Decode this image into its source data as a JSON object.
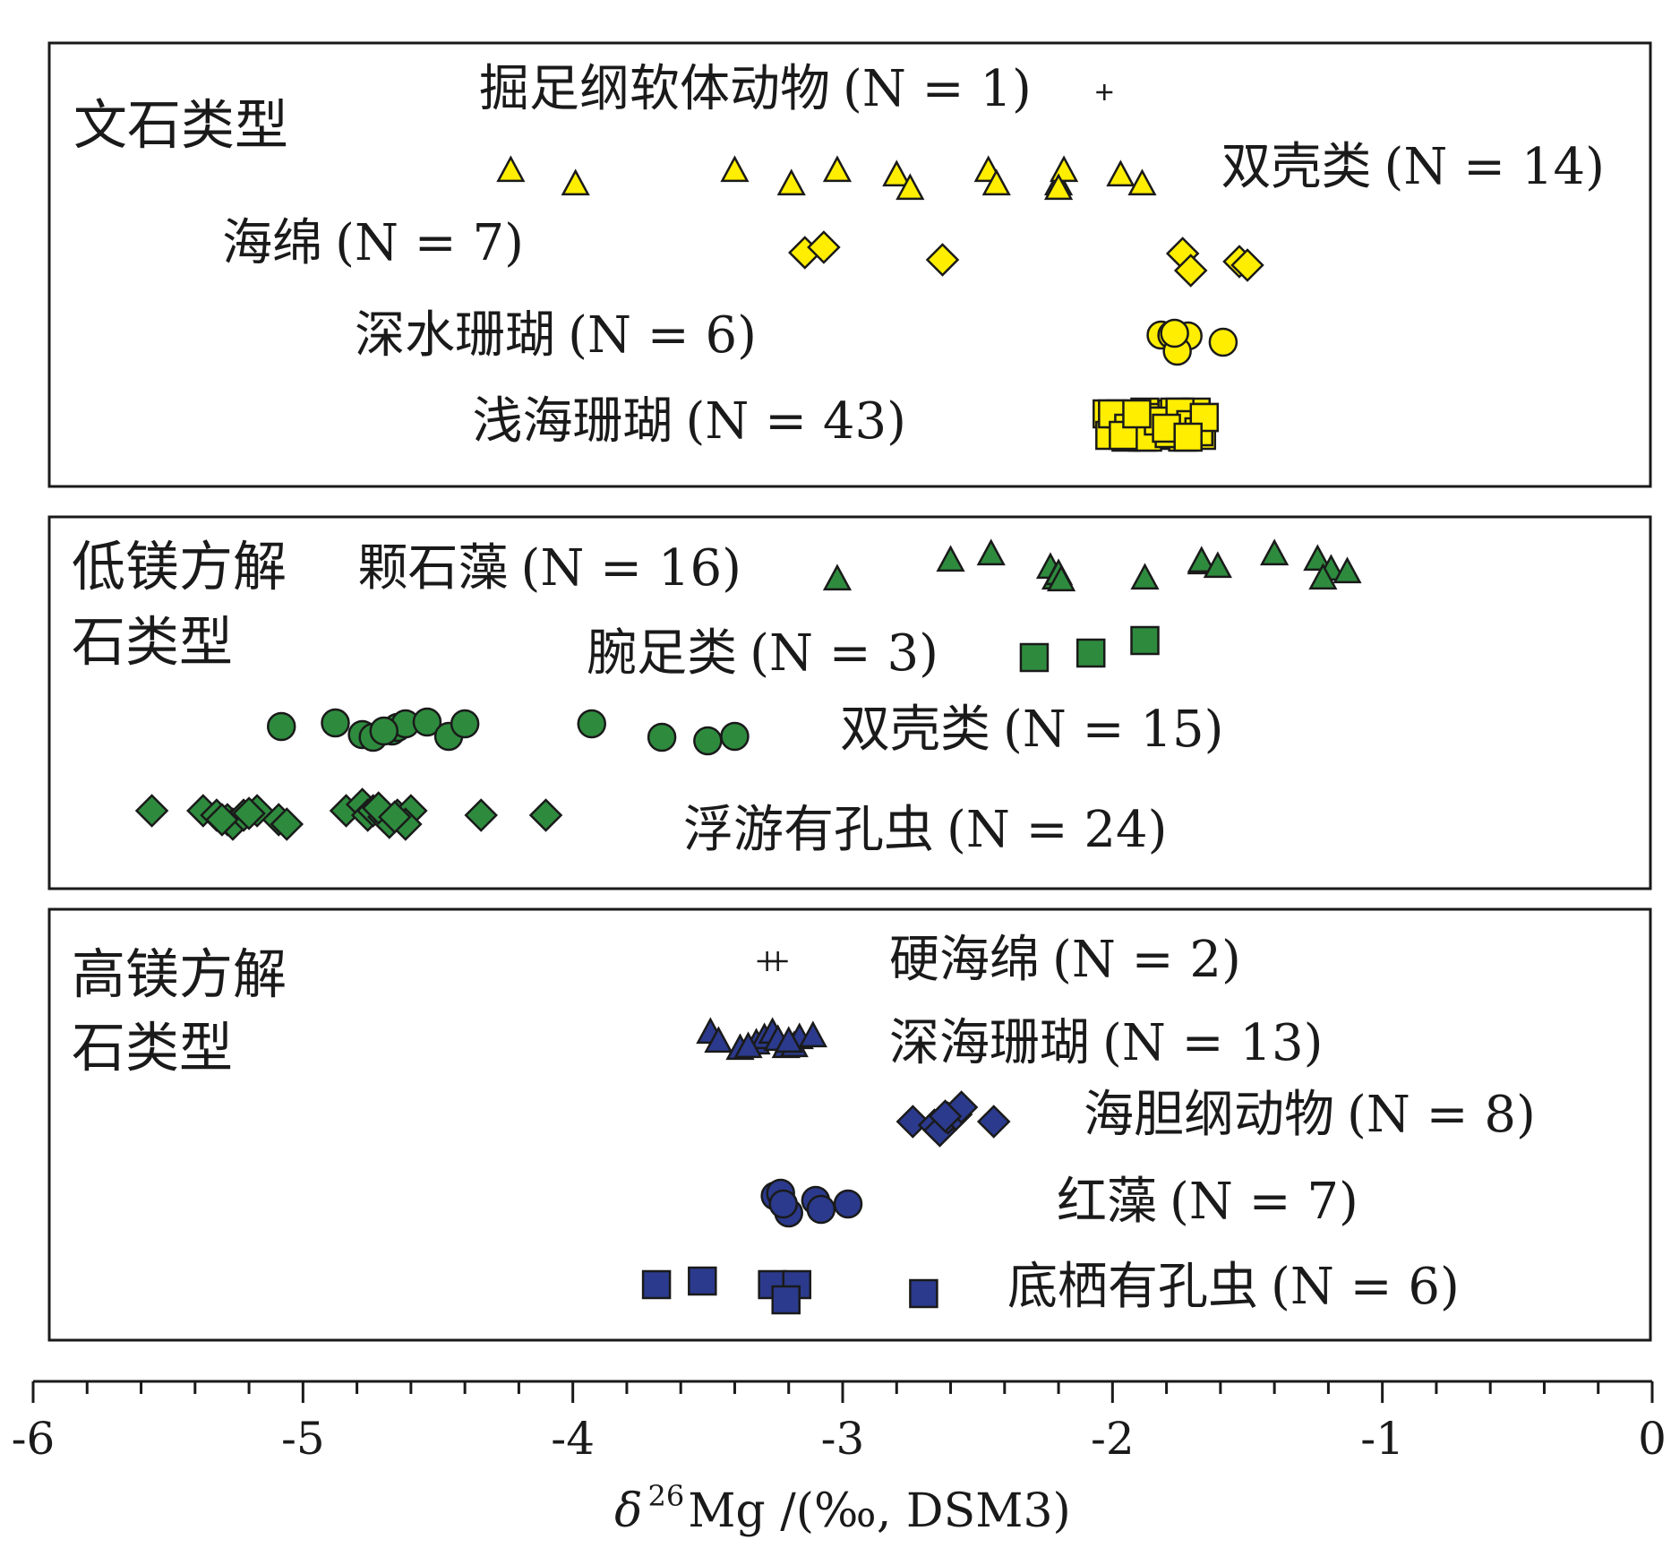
{
  "chart_data": {
    "type": "scatter",
    "xlabel": "δ 26 Mg /(‰, DSM3)",
    "xlabel_parts": {
      "delta": "δ",
      "sup": "26",
      "rest": "Mg /(‰, DSM3)"
    },
    "xlim": [
      -6,
      0
    ],
    "x_ticks": [
      -6,
      -5,
      -4,
      -3,
      -2,
      -1,
      0
    ],
    "x_tick_labels": [
      "-6",
      "-5",
      "-4",
      "-3",
      "-2",
      "-1",
      "0"
    ],
    "minor_tick_step": 0.2,
    "colors": {
      "aragonite": "#ffee00",
      "low_mg_calcite": "#2e8b3e",
      "high_mg_calcite": "#2b3a8c",
      "outline": "#1a1a1a"
    },
    "panels": [
      {
        "key": "aragonite",
        "label_lines": [
          "文石类型"
        ],
        "color": "#ffee00",
        "series": [
          {
            "name": "掘足纲软体动物",
            "n_label": "(N = 1)",
            "marker": "plus",
            "points": [
              -2.03
            ]
          },
          {
            "name": "双壳类",
            "n_label": "(N = 14)",
            "marker": "triangle",
            "points": [
              -4.23,
              -3.99,
              -3.4,
              -3.19,
              -3.02,
              -2.8,
              -2.75,
              -2.46,
              -2.43,
              -2.2,
              -2.18,
              -2.2,
              -1.97,
              -1.89
            ]
          },
          {
            "name": "海绵",
            "n_label": "(N = 7)",
            "marker": "diamond",
            "points": [
              -3.14,
              -3.07,
              -2.63,
              -1.74,
              -1.71,
              -1.53,
              -1.5
            ]
          },
          {
            "name": "深水珊瑚",
            "n_label": "(N = 6)",
            "marker": "circle",
            "points": [
              -1.82,
              -1.78,
              -1.72,
              -1.76,
              -1.59,
              -1.77
            ]
          },
          {
            "name": "浅海珊瑚",
            "n_label": "(N = 43)",
            "marker": "square",
            "points": [
              -2.02,
              -1.98,
              -1.95,
              -1.92,
              -1.9,
              -1.88,
              -1.86,
              -1.84,
              -1.82,
              -1.8,
              -1.78,
              -1.76,
              -1.74,
              -1.72,
              -1.7,
              -1.69,
              -1.68,
              -1.67,
              -1.66,
              -2.01,
              -1.97,
              -1.93,
              -1.89,
              -1.85,
              -1.81,
              -1.77,
              -1.73,
              -1.71,
              -1.69,
              -1.67,
              -2.0,
              -1.94,
              -1.87,
              -1.83,
              -1.79,
              -1.75,
              -1.71,
              -1.68,
              -1.66,
              -1.96,
              -1.91,
              -1.8,
              -1.72
            ]
          }
        ]
      },
      {
        "key": "low_mg_calcite",
        "label_lines": [
          "低镁方解",
          "石类型"
        ],
        "color": "#2e8b3e",
        "series": [
          {
            "name": "颗石藻",
            "n_label": "(N = 16)",
            "marker": "triangle",
            "points": [
              -3.02,
              -2.6,
              -2.45,
              -2.23,
              -2.21,
              -2.2,
              -1.88,
              -1.67,
              -1.67,
              -1.61,
              -1.4,
              -1.24,
              -1.19,
              -1.13,
              -1.22,
              -2.19
            ]
          },
          {
            "name": "腕足类",
            "n_label": "(N = 3)",
            "marker": "square",
            "points": [
              -2.29,
              -2.08,
              -1.88
            ]
          },
          {
            "name": "双壳类",
            "n_label": "(N = 15)",
            "marker": "circle",
            "points": [
              -5.08,
              -4.88,
              -4.78,
              -4.74,
              -4.67,
              -4.65,
              -4.62,
              -4.54,
              -4.46,
              -4.4,
              -3.93,
              -3.67,
              -3.5,
              -3.4,
              -4.7
            ]
          },
          {
            "name": "浮游有孔虫",
            "n_label": "(N = 24)",
            "marker": "diamond",
            "points": [
              -5.56,
              -5.37,
              -5.32,
              -5.28,
              -5.26,
              -5.22,
              -5.17,
              -5.09,
              -5.06,
              -4.84,
              -4.78,
              -4.76,
              -4.74,
              -4.7,
              -4.68,
              -4.65,
              -4.6,
              -4.62,
              -4.34,
              -4.1,
              -5.3,
              -4.72,
              -4.66,
              -5.2
            ]
          }
        ]
      },
      {
        "key": "high_mg_calcite",
        "label_lines": [
          "高镁方解",
          "石类型"
        ],
        "color": "#2b3a8c",
        "series": [
          {
            "name": "硬海绵",
            "n_label": "(N = 2)",
            "marker": "plus",
            "points": [
              -3.28,
              -3.24
            ]
          },
          {
            "name": "深海珊瑚",
            "n_label": "(N = 13)",
            "marker": "triangle",
            "points": [
              -3.49,
              -3.46,
              -3.38,
              -3.32,
              -3.29,
              -3.26,
              -3.24,
              -3.21,
              -3.18,
              -3.16,
              -3.11,
              -3.35,
              -3.2
            ]
          },
          {
            "name": "海胆纲动物",
            "n_label": "(N = 8)",
            "marker": "diamond",
            "points": [
              -2.74,
              -2.66,
              -2.64,
              -2.61,
              -2.58,
              -2.56,
              -2.44,
              -2.62
            ]
          },
          {
            "name": "红藻",
            "n_label": "(N = 7)",
            "marker": "circle",
            "points": [
              -3.25,
              -3.23,
              -3.2,
              -3.1,
              -3.08,
              -2.98,
              -3.22
            ]
          },
          {
            "name": "底栖有孔虫",
            "n_label": "(N = 6)",
            "marker": "square",
            "points": [
              -3.69,
              -3.52,
              -3.26,
              -3.17,
              -3.21,
              -2.7
            ]
          }
        ]
      }
    ]
  }
}
